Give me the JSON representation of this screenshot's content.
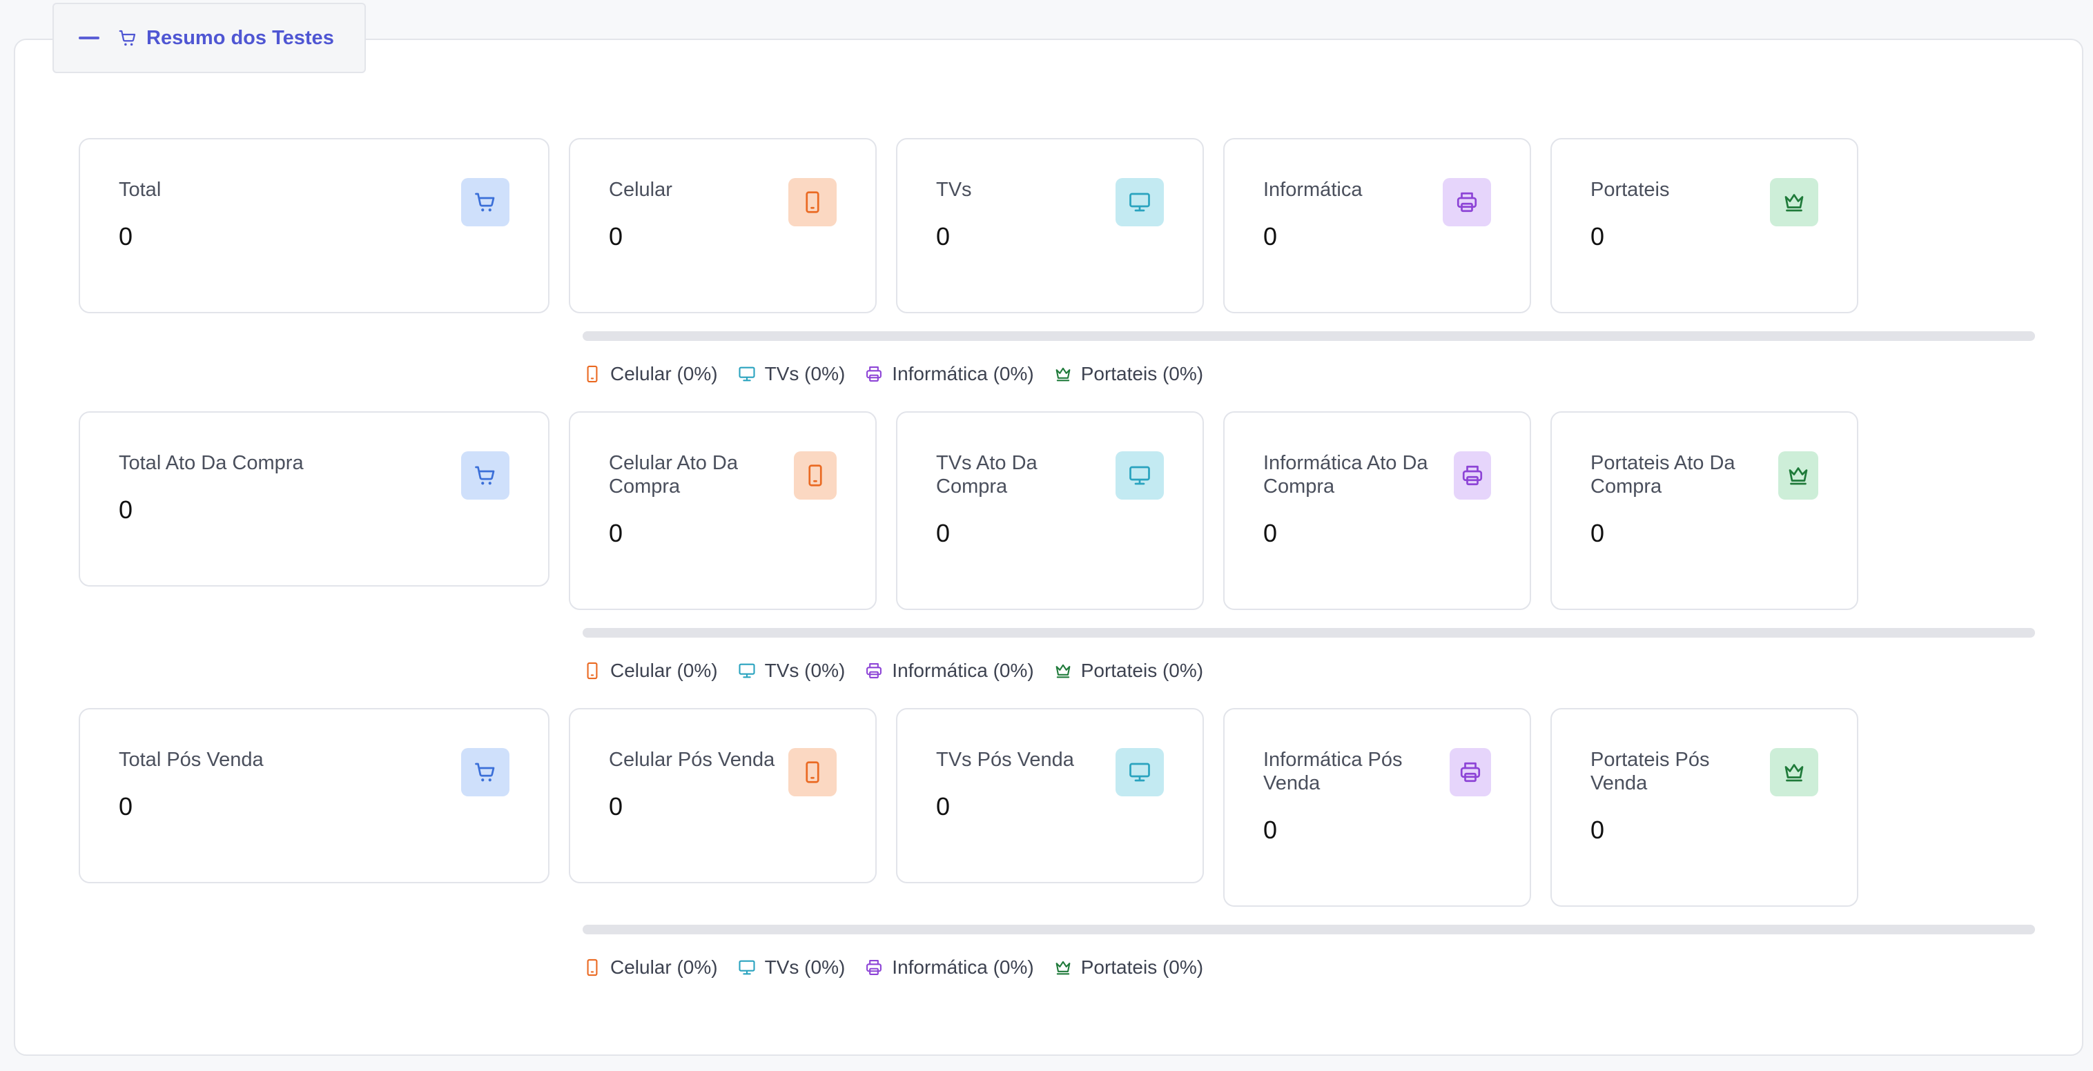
{
  "panel": {
    "title": "Resumo dos Testes",
    "title_icon": "cart-icon",
    "collapse_icon": "minus-icon"
  },
  "rows": [
    {
      "cards": [
        {
          "label": "Total",
          "value": "0",
          "icon": "cart-icon"
        },
        {
          "label": "Celular",
          "value": "0",
          "icon": "phone-icon"
        },
        {
          "label": "TVs",
          "value": "0",
          "icon": "monitor-icon"
        },
        {
          "label": "Informática",
          "value": "0",
          "icon": "printer-icon"
        },
        {
          "label": "Portateis",
          "value": "0",
          "icon": "crown-icon"
        }
      ],
      "legend": [
        "Celular (0%)",
        "TVs (0%)",
        "Informática (0%)",
        "Portateis (0%)"
      ]
    },
    {
      "cards": [
        {
          "label": "Total Ato Da Compra",
          "value": "0",
          "icon": "cart-icon"
        },
        {
          "label": "Celular Ato Da Compra",
          "value": "0",
          "icon": "phone-icon"
        },
        {
          "label": "TVs Ato Da Compra",
          "value": "0",
          "icon": "monitor-icon"
        },
        {
          "label": "Informática Ato Da Compra",
          "value": "0",
          "icon": "printer-icon"
        },
        {
          "label": "Portateis Ato Da Compra",
          "value": "0",
          "icon": "crown-icon"
        }
      ],
      "legend": [
        "Celular (0%)",
        "TVs (0%)",
        "Informática (0%)",
        "Portateis (0%)"
      ]
    },
    {
      "cards": [
        {
          "label": "Total Pós Venda",
          "value": "0",
          "icon": "cart-icon"
        },
        {
          "label": "Celular Pós Venda",
          "value": "0",
          "icon": "phone-icon"
        },
        {
          "label": "TVs Pós Venda",
          "value": "0",
          "icon": "monitor-icon"
        },
        {
          "label": "Informática Pós Venda",
          "value": "0",
          "icon": "printer-icon"
        },
        {
          "label": "Portateis Pós Venda",
          "value": "0",
          "icon": "crown-icon"
        }
      ],
      "legend": [
        "Celular (0%)",
        "TVs (0%)",
        "Informática (0%)",
        "Portateis (0%)"
      ]
    }
  ],
  "progress": [
    0,
    0,
    0
  ],
  "colors": {
    "accent": "#4f56d3",
    "celular": "#ea6a23",
    "tvs": "#2aa3bf",
    "informatica": "#8d44d6",
    "portateis": "#1f7a3a",
    "total": "#3b6fd8"
  }
}
